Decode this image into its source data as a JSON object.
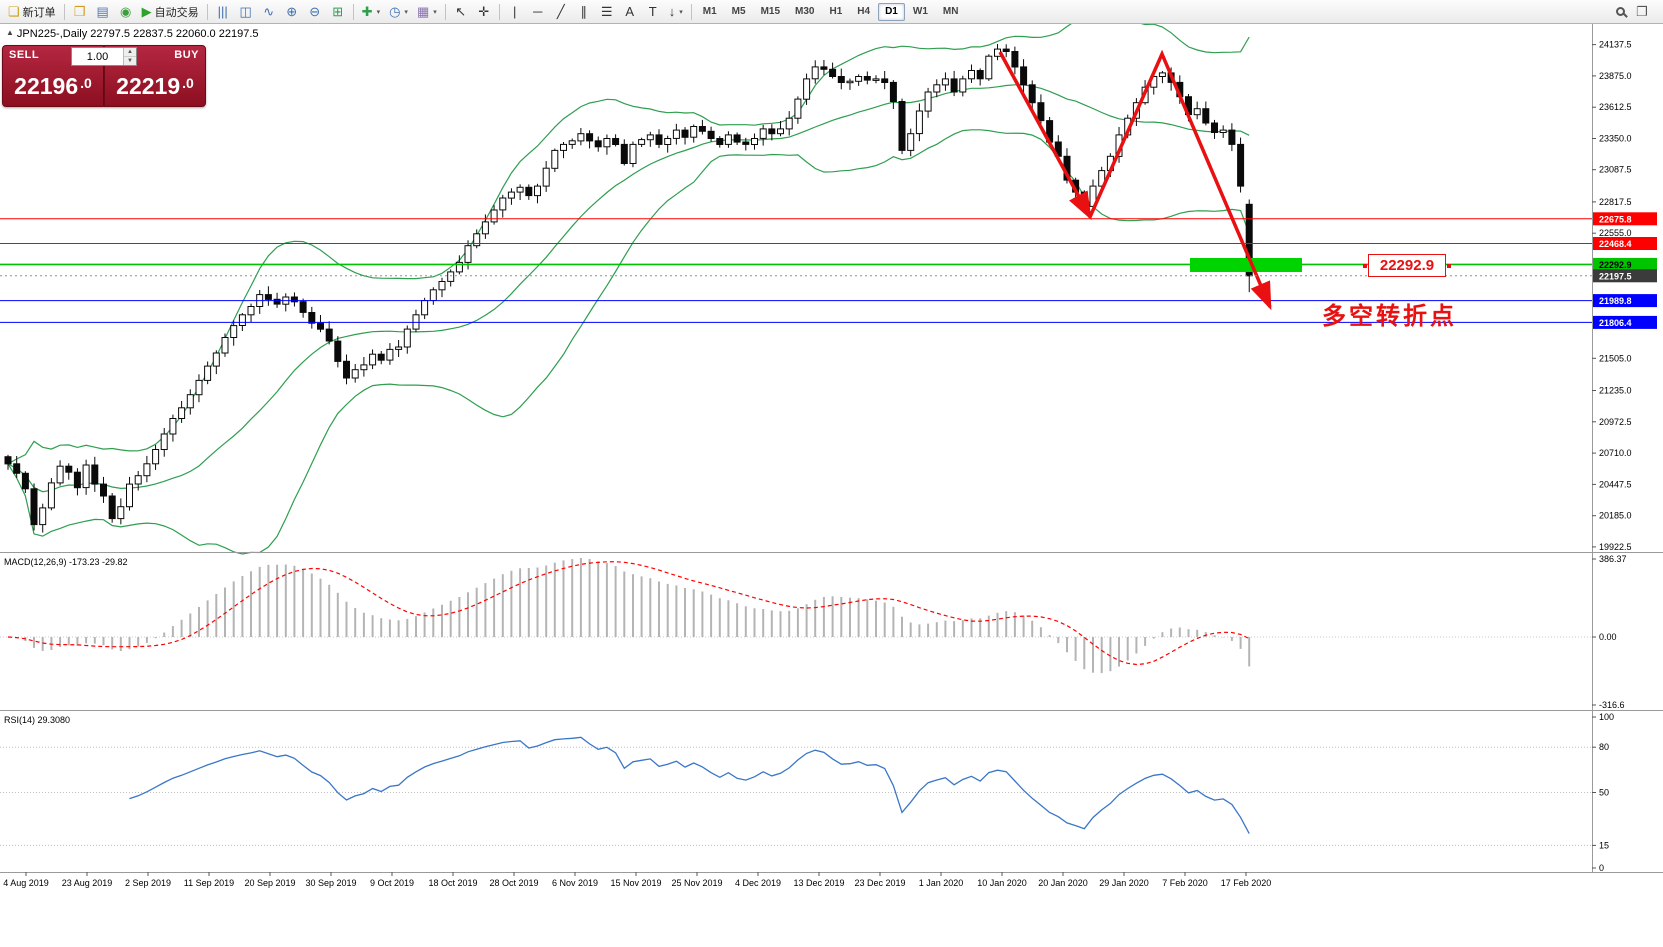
{
  "toolbar": {
    "groups": [
      {
        "items": [
          {
            "name": "new-order-button",
            "glyph": "❏",
            "glyph_color": "#caa11e",
            "label": "新订单"
          }
        ]
      },
      {
        "items": [
          {
            "name": "chart-window-icon",
            "glyph": "❒",
            "glyph_color": "#d39c1f"
          },
          {
            "name": "profiles-icon",
            "glyph": "▤",
            "glyph_color": "#4a78b5"
          },
          {
            "name": "refresh-icon",
            "glyph": "◉",
            "glyph_color": "#3aa13a"
          },
          {
            "name": "autotrading-button",
            "glyph": "▶",
            "glyph_color": "#2ea12e",
            "label": "自动交易"
          }
        ]
      },
      {
        "items": [
          {
            "name": "bars-chart-icon",
            "glyph": "|||",
            "glyph_color": "#3f6fae"
          },
          {
            "name": "candlestick-chart-icon",
            "glyph": "◫",
            "glyph_color": "#3f6fae"
          },
          {
            "name": "line-chart-icon",
            "glyph": "∿",
            "glyph_color": "#3f6fae"
          },
          {
            "name": "zoom-in-icon",
            "glyph": "⊕",
            "glyph_color": "#3f6fae"
          },
          {
            "name": "zoom-out-icon",
            "glyph": "⊖",
            "glyph_color": "#3f6fae"
          },
          {
            "name": "tile-windows-icon",
            "glyph": "⊞",
            "glyph_color": "#2e9e4f"
          }
        ]
      },
      {
        "items": [
          {
            "name": "indicators-icon",
            "glyph": "✚",
            "glyph_color": "#2e9e4f",
            "dd": true
          },
          {
            "name": "periods-icon",
            "glyph": "◷",
            "glyph_color": "#3f6fae",
            "dd": true
          },
          {
            "name": "templates-icon",
            "glyph": "▦",
            "glyph_color": "#8a6fb0",
            "dd": true
          }
        ]
      },
      {
        "items": [
          {
            "name": "cursor-icon",
            "glyph": "↖",
            "glyph_color": "#333333"
          },
          {
            "name": "crosshair-icon",
            "glyph": "✛",
            "glyph_color": "#333333"
          }
        ]
      },
      {
        "items": [
          {
            "name": "vertical-line-icon",
            "glyph": "|",
            "glyph_color": "#333333"
          },
          {
            "name": "horizontal-line-icon",
            "glyph": "─",
            "glyph_color": "#333333"
          },
          {
            "name": "trendline-icon",
            "glyph": "╱",
            "glyph_color": "#333333"
          },
          {
            "name": "channel-icon",
            "glyph": "∥",
            "glyph_color": "#333333"
          },
          {
            "name": "fibonacci-icon",
            "glyph": "☰",
            "glyph_color": "#333333"
          },
          {
            "name": "text-icon",
            "glyph": "A",
            "glyph_color": "#333333"
          },
          {
            "name": "text-label-icon",
            "glyph": "T",
            "glyph_color": "#333333"
          },
          {
            "name": "arrow-tools-icon",
            "glyph": "↓",
            "glyph_color": "#333333",
            "dd": true
          }
        ]
      }
    ],
    "timeframes": {
      "items": [
        "M1",
        "M5",
        "M15",
        "M30",
        "H1",
        "H4",
        "D1",
        "W1",
        "MN"
      ],
      "active": "D1"
    },
    "right_items": [
      {
        "name": "search-icon",
        "type": "magnifier"
      },
      {
        "name": "new-window-icon",
        "glyph": "❐",
        "glyph_color": "#555555"
      }
    ]
  },
  "symbol_info": {
    "marker": "▲",
    "text": "JPN225-,Daily  22797.5 22837.5 22060.0 22197.5"
  },
  "trade_panel": {
    "sell_label": "SELL",
    "buy_label": "BUY",
    "volume": "1.00",
    "sell_price_main": "22196",
    "sell_price_dec": ".0",
    "buy_price_main": "22219",
    "buy_price_dec": ".0"
  },
  "chart_data": {
    "type": "candlestick",
    "symbol": "JPN225-",
    "period": "Daily",
    "ohlc_label": {
      "open": 22797.5,
      "high": 22837.5,
      "low": 22060.0,
      "close": 22197.5
    },
    "price_axis_ticks": [
      24137.5,
      23875.0,
      23612.5,
      23350.0,
      23087.5,
      22817.5,
      22555.0,
      21505.0,
      21235.0,
      20972.5,
      20710.0,
      20447.5,
      20185.0,
      19922.5
    ],
    "date_labels": [
      "4 Aug 2019",
      "23 Aug 2019",
      "2 Sep 2019",
      "11 Sep 2019",
      "20 Sep 2019",
      "30 Sep 2019",
      "9 Oct 2019",
      "18 Oct 2019",
      "28 Oct 2019",
      "6 Nov 2019",
      "15 Nov 2019",
      "25 Nov 2019",
      "4 Dec 2019",
      "13 Dec 2019",
      "23 Dec 2019",
      "1 Jan 2020",
      "10 Jan 2020",
      "20 Jan 2020",
      "29 Jan 2020",
      "7 Feb 2020",
      "17 Feb 2020"
    ],
    "closes": [
      20620,
      20540,
      20410,
      20110,
      20250,
      20460,
      20600,
      20550,
      20420,
      20610,
      20450,
      20350,
      20160,
      20260,
      20450,
      20520,
      20620,
      20740,
      20870,
      21000,
      21090,
      21200,
      21320,
      21440,
      21550,
      21680,
      21780,
      21870,
      21940,
      22040,
      22000,
      21960,
      22020,
      21980,
      21890,
      21800,
      21750,
      21650,
      21480,
      21340,
      21410,
      21450,
      21540,
      21490,
      21580,
      21600,
      21750,
      21870,
      21990,
      22080,
      22150,
      22230,
      22310,
      22450,
      22550,
      22650,
      22750,
      22850,
      22900,
      22940,
      22870,
      22950,
      23100,
      23250,
      23300,
      23330,
      23390,
      23330,
      23280,
      23350,
      23300,
      23140,
      23300,
      23340,
      23380,
      23300,
      23350,
      23420,
      23360,
      23450,
      23410,
      23350,
      23300,
      23380,
      23320,
      23300,
      23350,
      23430,
      23390,
      23430,
      23520,
      23680,
      23850,
      23950,
      23930,
      23870,
      23820,
      23830,
      23870,
      23840,
      23850,
      23820,
      23660,
      23250,
      23390,
      23580,
      23740,
      23800,
      23850,
      23740,
      23850,
      23920,
      23850,
      24040,
      24100,
      24080,
      23950,
      23800,
      23650,
      23500,
      23320,
      23200,
      23000,
      22900,
      22780,
      22950,
      23080,
      23200,
      23380,
      23520,
      23650,
      23780,
      23870,
      23900,
      23820,
      23700,
      23550,
      23600,
      23480,
      23400,
      23420,
      23300,
      22950,
      22197.5
    ],
    "last_candle": {
      "open": 22797.5,
      "high": 22837.5,
      "low": 22060.0,
      "close": 22197.5
    },
    "hlines": [
      {
        "price": 22675.8,
        "label": "22675.8",
        "color": "#ff0000",
        "text_color": "#ffffff"
      },
      {
        "price": 22468.4,
        "label": "22468.4",
        "color": "#ff0000",
        "text_color": "#ffffff"
      },
      {
        "price": 22292.9,
        "label": "22292.9",
        "color": "#00c400",
        "text_color": "#000000"
      },
      {
        "price": 21989.8,
        "label": "21989.8",
        "color": "#0000ff",
        "text_color": "#ffffff"
      },
      {
        "price": 21806.4,
        "label": "21806.4",
        "color": "#0000ff",
        "text_color": "#ffffff"
      }
    ],
    "current_price": {
      "price": 22197.5,
      "label": "22197.5",
      "bg": "#3b3b3b",
      "text_color": "#ffffff"
    },
    "bollinger": {
      "period": 20,
      "deviation": 2,
      "color": "#2e9e4f"
    },
    "macd": {
      "label": "MACD(12,26,9)",
      "values_text": "-173.23 -29.82",
      "axis_labels": [
        "386.37",
        "0.00",
        "-316.6"
      ],
      "bar_color": "#b4b4b4",
      "signal_color": "#ff0000"
    },
    "rsi": {
      "label": "RSI(14)",
      "value_text": "29.3080",
      "axis_values": [
        100,
        80,
        50,
        15,
        0
      ],
      "levels": [
        80,
        50,
        15
      ],
      "line_color": "#3a76c8"
    },
    "annotations": {
      "price_callout": {
        "text": "22292.9",
        "color": "#e81010"
      },
      "note_text": {
        "text": "多空转折点",
        "color": "#e81010"
      },
      "highlight_rect_color": "#00d400",
      "arrow_color": "#e81010"
    }
  }
}
